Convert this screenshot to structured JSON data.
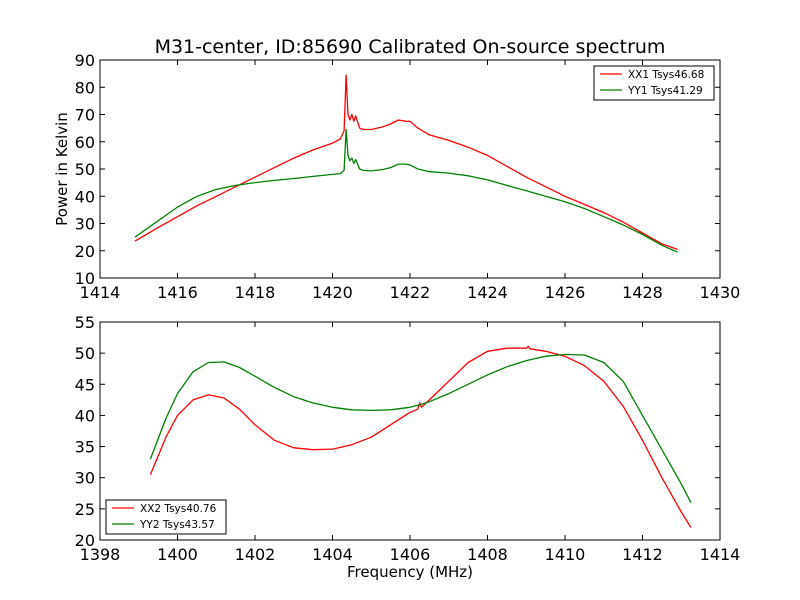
{
  "chart_data": [
    {
      "type": "line",
      "title": "M31-center, ID:85690 Calibrated On-source spectrum",
      "xlabel": "",
      "ylabel": "Power in Kelvin",
      "xlim": [
        1414,
        1430
      ],
      "ylim": [
        10,
        90
      ],
      "xticks": [
        1414,
        1416,
        1418,
        1420,
        1422,
        1424,
        1426,
        1428,
        1430
      ],
      "yticks": [
        10,
        20,
        30,
        40,
        50,
        60,
        70,
        80,
        90
      ],
      "grid": false,
      "legend_position": "top-right",
      "series": [
        {
          "name": "XX1 Tsys46.68",
          "color": "#ff0000",
          "x": [
            1414.9,
            1415.5,
            1416.0,
            1416.5,
            1417.0,
            1417.5,
            1418.0,
            1418.5,
            1419.0,
            1419.5,
            1420.0,
            1420.2,
            1420.3,
            1420.35,
            1420.4,
            1420.45,
            1420.5,
            1420.55,
            1420.6,
            1420.7,
            1420.8,
            1421.0,
            1421.3,
            1421.5,
            1421.7,
            1421.9,
            1422.0,
            1422.2,
            1422.5,
            1423.0,
            1423.5,
            1424.0,
            1424.5,
            1425.0,
            1425.5,
            1426.0,
            1426.5,
            1427.0,
            1427.5,
            1428.0,
            1428.5,
            1428.9
          ],
          "y": [
            23.5,
            28.5,
            32.5,
            36.5,
            40.0,
            43.5,
            47.0,
            50.5,
            54.0,
            57.0,
            59.5,
            61.0,
            64.0,
            84.5,
            70.0,
            68.0,
            70.0,
            67.5,
            69.5,
            65.0,
            64.5,
            64.5,
            65.5,
            66.5,
            68.0,
            67.5,
            67.5,
            65.0,
            62.5,
            60.5,
            58.0,
            55.0,
            51.0,
            47.0,
            43.5,
            40.0,
            37.0,
            34.0,
            30.5,
            26.5,
            22.5,
            20.5
          ]
        },
        {
          "name": "YY1 Tsys41.29",
          "color": "#008000",
          "x": [
            1414.9,
            1415.5,
            1416.0,
            1416.5,
            1417.0,
            1417.5,
            1418.0,
            1418.5,
            1419.0,
            1419.5,
            1420.0,
            1420.2,
            1420.3,
            1420.35,
            1420.4,
            1420.45,
            1420.5,
            1420.55,
            1420.6,
            1420.7,
            1420.8,
            1421.0,
            1421.3,
            1421.5,
            1421.7,
            1421.9,
            1422.0,
            1422.2,
            1422.5,
            1423.0,
            1423.5,
            1424.0,
            1424.5,
            1425.0,
            1425.5,
            1426.0,
            1426.5,
            1427.0,
            1427.5,
            1428.0,
            1428.5,
            1428.9
          ],
          "y": [
            25.0,
            31.0,
            36.0,
            40.0,
            42.5,
            44.0,
            45.0,
            45.8,
            46.5,
            47.3,
            48.0,
            48.3,
            49.5,
            64.5,
            55.0,
            53.0,
            54.0,
            52.0,
            53.5,
            50.0,
            49.5,
            49.3,
            49.8,
            50.5,
            51.8,
            51.8,
            51.5,
            50.0,
            49.0,
            48.5,
            47.5,
            46.0,
            44.0,
            42.0,
            40.0,
            38.0,
            35.5,
            32.5,
            29.5,
            26.0,
            22.0,
            19.5
          ]
        }
      ]
    },
    {
      "type": "line",
      "title": "",
      "xlabel": "Frequency (MHz)",
      "ylabel": "",
      "xlim": [
        1398,
        1414
      ],
      "ylim": [
        20,
        55
      ],
      "xticks": [
        1398,
        1400,
        1402,
        1404,
        1406,
        1408,
        1410,
        1412,
        1414
      ],
      "yticks": [
        20,
        25,
        30,
        35,
        40,
        45,
        50,
        55
      ],
      "grid": false,
      "legend_position": "bottom-left",
      "series": [
        {
          "name": "XX2 Tsys40.76",
          "color": "#ff0000",
          "x": [
            1399.3,
            1399.7,
            1400.0,
            1400.4,
            1400.8,
            1401.2,
            1401.6,
            1402.0,
            1402.5,
            1403.0,
            1403.5,
            1404.0,
            1404.5,
            1405.0,
            1405.5,
            1406.0,
            1406.2,
            1406.25,
            1406.3,
            1406.5,
            1407.0,
            1407.5,
            1408.0,
            1408.5,
            1409.0,
            1409.05,
            1409.1,
            1409.5,
            1410.0,
            1410.5,
            1411.0,
            1411.5,
            1412.0,
            1412.5,
            1413.0,
            1413.25
          ],
          "y": [
            30.5,
            36.5,
            40.0,
            42.5,
            43.3,
            42.8,
            41.0,
            38.5,
            36.0,
            34.8,
            34.5,
            34.6,
            35.3,
            36.5,
            38.5,
            40.5,
            41.0,
            42.0,
            41.3,
            42.5,
            45.5,
            48.5,
            50.3,
            50.8,
            50.8,
            51.1,
            50.7,
            50.3,
            49.5,
            48.0,
            45.5,
            41.5,
            36.0,
            30.0,
            24.5,
            22.0
          ]
        },
        {
          "name": "YY2 Tsys43.57",
          "color": "#008000",
          "x": [
            1399.3,
            1399.7,
            1400.0,
            1400.4,
            1400.8,
            1401.2,
            1401.6,
            1402.0,
            1402.5,
            1403.0,
            1403.5,
            1404.0,
            1404.5,
            1405.0,
            1405.5,
            1406.0,
            1406.3,
            1406.5,
            1407.0,
            1407.5,
            1408.0,
            1408.5,
            1409.0,
            1409.5,
            1410.0,
            1410.5,
            1411.0,
            1411.5,
            1412.0,
            1412.5,
            1413.0,
            1413.25
          ],
          "y": [
            33.0,
            39.5,
            43.5,
            47.0,
            48.5,
            48.6,
            47.7,
            46.3,
            44.5,
            43.0,
            42.0,
            41.3,
            40.9,
            40.8,
            40.9,
            41.3,
            41.8,
            42.2,
            43.5,
            45.0,
            46.5,
            47.8,
            48.8,
            49.5,
            49.8,
            49.7,
            48.5,
            45.5,
            40.0,
            34.5,
            29.0,
            26.0
          ]
        }
      ]
    }
  ]
}
